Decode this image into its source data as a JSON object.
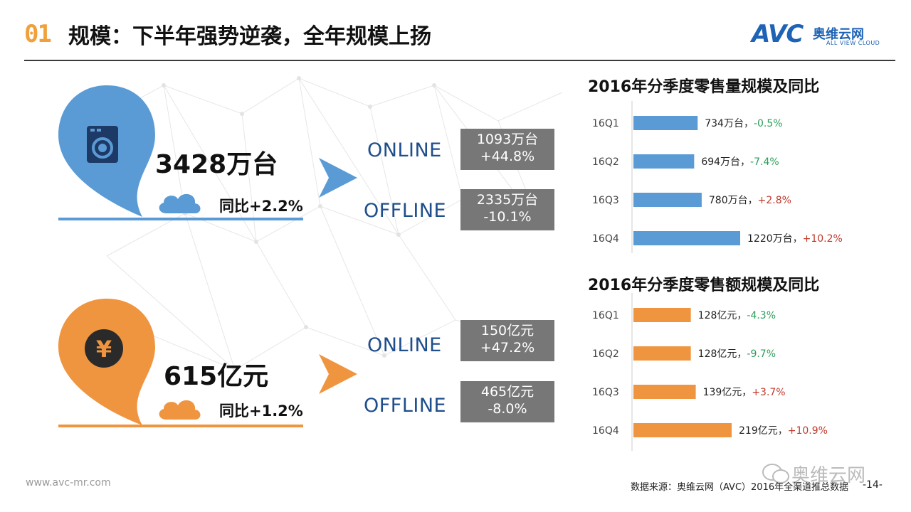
{
  "header": {
    "number": "01",
    "title": "规模：下半年强势逆袭，全年规模上扬",
    "logo_main": "AVC",
    "logo_cn": "奥维云网",
    "logo_sub": "ALL VIEW CLOUD"
  },
  "volume": {
    "total": "3428万台",
    "yoy": "同比+2.2%",
    "online_label": "ONLINE",
    "offline_label": "OFFLINE",
    "online_value": "1093万台",
    "online_change": "+44.8%",
    "offline_value": "2335万台",
    "offline_change": "-10.1%",
    "icon": "washing-machine-icon",
    "color": "#5b9bd5"
  },
  "revenue": {
    "total": "615亿元",
    "yoy": "同比+1.2%",
    "online_label": "ONLINE",
    "offline_label": "OFFLINE",
    "online_value": "150亿元",
    "online_change": "+47.2%",
    "offline_value": "465亿元",
    "offline_change": "-8.0%",
    "icon": "yen-icon",
    "color": "#f0953f"
  },
  "chart_data": [
    {
      "type": "bar",
      "orientation": "horizontal",
      "title": "2016年分季度零售量规模及同比",
      "categories": [
        "16Q1",
        "16Q2",
        "16Q3",
        "16Q4"
      ],
      "values": [
        734,
        694,
        780,
        1220
      ],
      "unit": "万台",
      "yoy": [
        "-0.5%",
        "-7.4%",
        "+2.8%",
        "+10.2%"
      ],
      "labels": [
        "734万台，",
        "694万台，",
        "780万台，",
        "1220万台，"
      ],
      "color": "#5b9bd5",
      "pos_color": "#c0392b",
      "neg_color": "#2e9e5b"
    },
    {
      "type": "bar",
      "orientation": "horizontal",
      "title": "2016年分季度零售额规模及同比",
      "categories": [
        "16Q1",
        "16Q2",
        "16Q3",
        "16Q4"
      ],
      "values": [
        128,
        128,
        139,
        219
      ],
      "unit": "亿元",
      "yoy": [
        "-4.3%",
        "-9.7%",
        "+3.7%",
        "+10.9%"
      ],
      "labels": [
        "128亿元，",
        "128亿元，",
        "139亿元，",
        "219亿元，"
      ],
      "color": "#f0953f",
      "pos_color": "#c0392b",
      "neg_color": "#2e9e5b"
    }
  ],
  "footer": {
    "url": "www.avc-mr.com",
    "source": "数据来源：奥维云网（AVC）2016年全渠道推总数据",
    "page": "-14-",
    "watermark": "奥维云网"
  }
}
